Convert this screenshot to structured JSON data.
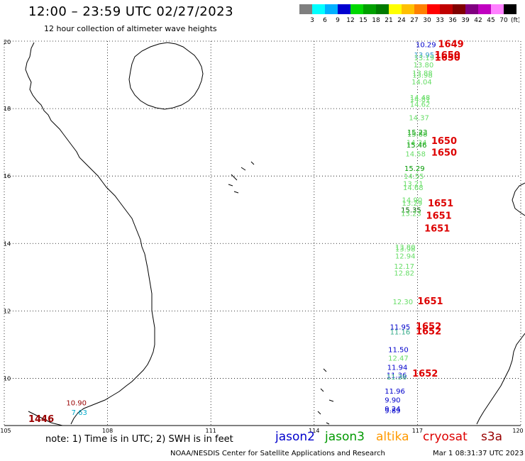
{
  "title": "12:00 – 23:59 UTC 02/27/2023",
  "subtitle": "12 hour collection of altimeter wave heights",
  "colorbar": {
    "colors": [
      "#7f7f7f",
      "#00ffff",
      "#00b0ff",
      "#0000d0",
      "#00d800",
      "#00a000",
      "#007a00",
      "#ffff00",
      "#ffc000",
      "#ff8000",
      "#ff0000",
      "#c00000",
      "#800000",
      "#800080",
      "#c000c0",
      "#ff80ff",
      "#000000"
    ],
    "labels": [
      "3",
      "6",
      "9",
      "12",
      "15",
      "18",
      "21",
      "24",
      "27",
      "30",
      "33",
      "36",
      "39",
      "42",
      "45",
      "70"
    ],
    "unit": "(ft)"
  },
  "axes": {
    "lon_ticks": [
      "105",
      "108",
      "111",
      "114",
      "117",
      "120"
    ],
    "lat_ticks": [
      "20",
      "18",
      "16",
      "14",
      "12",
      "10"
    ]
  },
  "map_colors": {
    "land": "#000000",
    "grid": "#000000"
  },
  "satellites": {
    "jason2": {
      "label": "jason2",
      "color": "#0000cc"
    },
    "jason3": {
      "label": "jason3",
      "color": "#009900"
    },
    "altika": {
      "label": "altika",
      "color": "#ff9900"
    },
    "cryosat": {
      "label": "cryosat",
      "color": "#dd0000"
    },
    "s3a": {
      "label": "s3a",
      "color": "#990000"
    }
  },
  "track_times": [
    {
      "lon": 117.6,
      "lat": 19.82,
      "text": "1649"
    },
    {
      "lon": 117.5,
      "lat": 19.5,
      "text": "1650"
    },
    {
      "lon": 117.5,
      "lat": 19.42,
      "text": "1650"
    },
    {
      "lon": 117.4,
      "lat": 16.95,
      "text": "1650"
    },
    {
      "lon": 117.4,
      "lat": 16.6,
      "text": "1650"
    },
    {
      "lon": 117.3,
      "lat": 15.1,
      "text": "1651"
    },
    {
      "lon": 117.25,
      "lat": 14.73,
      "text": "1651"
    },
    {
      "lon": 117.2,
      "lat": 14.35,
      "text": "1651"
    },
    {
      "lon": 117.0,
      "lat": 12.2,
      "text": "1651"
    },
    {
      "lon": 116.95,
      "lat": 11.45,
      "text": "1652"
    },
    {
      "lon": 116.95,
      "lat": 11.3,
      "text": "1652"
    },
    {
      "lon": 116.85,
      "lat": 10.05,
      "text": "1652"
    },
    {
      "lon": 105.7,
      "lat": 8.7,
      "text": "1446"
    }
  ],
  "wave_heights": [
    {
      "lon": 116.95,
      "lat": 19.82,
      "text": "10.29",
      "color": "#0000cc"
    },
    {
      "lon": 116.9,
      "lat": 19.52,
      "text": "13.95",
      "color": "#3399cc"
    },
    {
      "lon": 116.9,
      "lat": 19.43,
      "text": "13.19",
      "color": "#66dd66"
    },
    {
      "lon": 116.88,
      "lat": 19.22,
      "text": "13.80",
      "color": "#66dd66"
    },
    {
      "lon": 116.85,
      "lat": 18.98,
      "text": "13.88",
      "color": "#66dd66"
    },
    {
      "lon": 116.85,
      "lat": 18.92,
      "text": "13.98",
      "color": "#66dd66"
    },
    {
      "lon": 116.83,
      "lat": 18.72,
      "text": "14.04",
      "color": "#66dd66"
    },
    {
      "lon": 116.78,
      "lat": 18.25,
      "text": "14.48",
      "color": "#66dd66"
    },
    {
      "lon": 116.78,
      "lat": 18.2,
      "text": "14.81",
      "color": "#66dd66"
    },
    {
      "lon": 116.78,
      "lat": 18.05,
      "text": "14.62",
      "color": "#66dd66"
    },
    {
      "lon": 116.75,
      "lat": 17.65,
      "text": "14.37",
      "color": "#66dd66"
    },
    {
      "lon": 116.7,
      "lat": 17.22,
      "text": "15.23",
      "color": "#009900"
    },
    {
      "lon": 116.7,
      "lat": 17.17,
      "text": "15.88",
      "color": "#33bb33"
    },
    {
      "lon": 116.68,
      "lat": 16.92,
      "text": "14.34",
      "color": "#66dd66"
    },
    {
      "lon": 116.68,
      "lat": 16.85,
      "text": "15.46",
      "color": "#009900"
    },
    {
      "lon": 116.65,
      "lat": 16.58,
      "text": "14.58",
      "color": "#66dd66"
    },
    {
      "lon": 116.62,
      "lat": 16.15,
      "text": "15.29",
      "color": "#009900"
    },
    {
      "lon": 116.6,
      "lat": 15.92,
      "text": "14.55",
      "color": "#66dd66"
    },
    {
      "lon": 116.58,
      "lat": 15.7,
      "text": "13.21",
      "color": "#66dd66"
    },
    {
      "lon": 116.58,
      "lat": 15.58,
      "text": "14.68",
      "color": "#66dd66"
    },
    {
      "lon": 116.55,
      "lat": 15.22,
      "text": "14.90",
      "color": "#66dd66"
    },
    {
      "lon": 116.55,
      "lat": 15.12,
      "text": "13.29",
      "color": "#66dd66"
    },
    {
      "lon": 116.52,
      "lat": 14.92,
      "text": "15.35",
      "color": "#006600"
    },
    {
      "lon": 116.52,
      "lat": 14.82,
      "text": "13.23",
      "color": "#66dd66"
    },
    {
      "lon": 116.35,
      "lat": 13.82,
      "text": "13.80",
      "color": "#66dd66"
    },
    {
      "lon": 116.35,
      "lat": 13.76,
      "text": "13.98",
      "color": "#66dd66"
    },
    {
      "lon": 116.35,
      "lat": 13.55,
      "text": "12.94",
      "color": "#66dd66"
    },
    {
      "lon": 116.32,
      "lat": 13.25,
      "text": "12.17",
      "color": "#66dd66"
    },
    {
      "lon": 116.32,
      "lat": 13.05,
      "text": "12.82",
      "color": "#66dd66"
    },
    {
      "lon": 116.28,
      "lat": 12.2,
      "text": "12.30",
      "color": "#66dd66"
    },
    {
      "lon": 116.2,
      "lat": 11.45,
      "text": "11.95",
      "color": "#0000cc"
    },
    {
      "lon": 116.2,
      "lat": 11.3,
      "text": "11.16",
      "color": "#33aa88"
    },
    {
      "lon": 116.15,
      "lat": 10.78,
      "text": "11.50",
      "color": "#0000cc"
    },
    {
      "lon": 116.15,
      "lat": 10.52,
      "text": "12.47",
      "color": "#66dd66"
    },
    {
      "lon": 116.12,
      "lat": 10.25,
      "text": "11.94",
      "color": "#0000cc"
    },
    {
      "lon": 116.1,
      "lat": 10.02,
      "text": "11.36",
      "color": "#0000cc"
    },
    {
      "lon": 116.1,
      "lat": 9.97,
      "text": "11.36",
      "color": "#33aa88"
    },
    {
      "lon": 116.05,
      "lat": 9.55,
      "text": "11.96",
      "color": "#0000cc"
    },
    {
      "lon": 116.05,
      "lat": 9.28,
      "text": "9.90",
      "color": "#0000cc"
    },
    {
      "lon": 116.05,
      "lat": 9.02,
      "text": "9.24",
      "color": "#0000cc"
    },
    {
      "lon": 116.05,
      "lat": 8.97,
      "text": "9.89",
      "color": "#0000cc"
    },
    {
      "lon": 106.95,
      "lat": 8.92,
      "text": "7.63",
      "color": "#00aacc"
    },
    {
      "lon": 106.8,
      "lat": 9.2,
      "text": "10.90",
      "color": "#990000"
    }
  ],
  "note": "note:  1) Time is in UTC;  2) SWH is in feet",
  "footer": {
    "credit": "NOAA/NESDIS Center for Satellite Applications and Research",
    "timestamp": "Mar  1 08:31:37 UTC 2023"
  }
}
